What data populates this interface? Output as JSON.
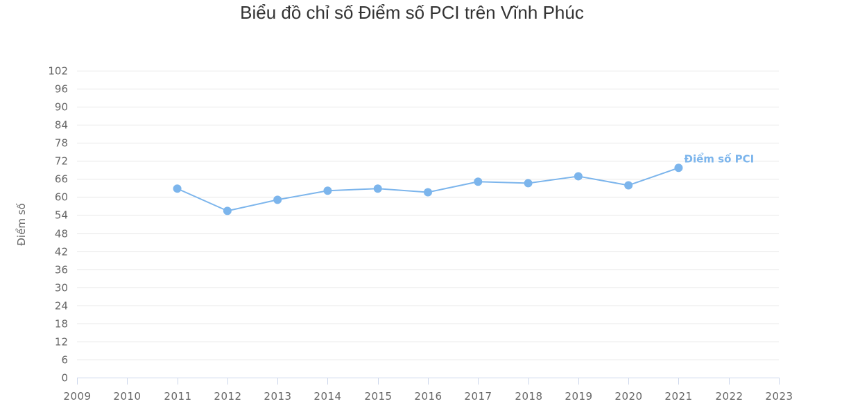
{
  "chart_data": {
    "type": "line",
    "title": "Biểu đồ chỉ số Điểm số PCI trên Vĩnh Phúc",
    "xlabel": "",
    "ylabel": "Điểm số",
    "x_ticks": [
      "2009",
      "2010",
      "2011",
      "2012",
      "2013",
      "2014",
      "2015",
      "2016",
      "2017",
      "2018",
      "2019",
      "2020",
      "2021",
      "2022",
      "2023"
    ],
    "y_ticks": [
      0,
      6,
      12,
      18,
      24,
      30,
      36,
      42,
      48,
      54,
      60,
      66,
      72,
      78,
      84,
      90,
      96,
      102
    ],
    "ylim": [
      0,
      102
    ],
    "xlim": [
      2009,
      2023
    ],
    "grid": true,
    "legend_position": "inline-end-label",
    "series": [
      {
        "name": "Điểm số PCI",
        "color": "#7cb5ec",
        "x": [
          2011,
          2012,
          2013,
          2014,
          2015,
          2016,
          2017,
          2018,
          2019,
          2020,
          2021
        ],
        "values": [
          62.8,
          55.4,
          59.1,
          62.1,
          62.8,
          61.6,
          65.1,
          64.6,
          66.9,
          63.9,
          69.7
        ]
      }
    ]
  },
  "colors": {
    "title": "#333333",
    "axis_text": "#666666",
    "grid": "#e6e6e6",
    "axis_line": "#ccd6eb",
    "series": "#7cb5ec"
  }
}
